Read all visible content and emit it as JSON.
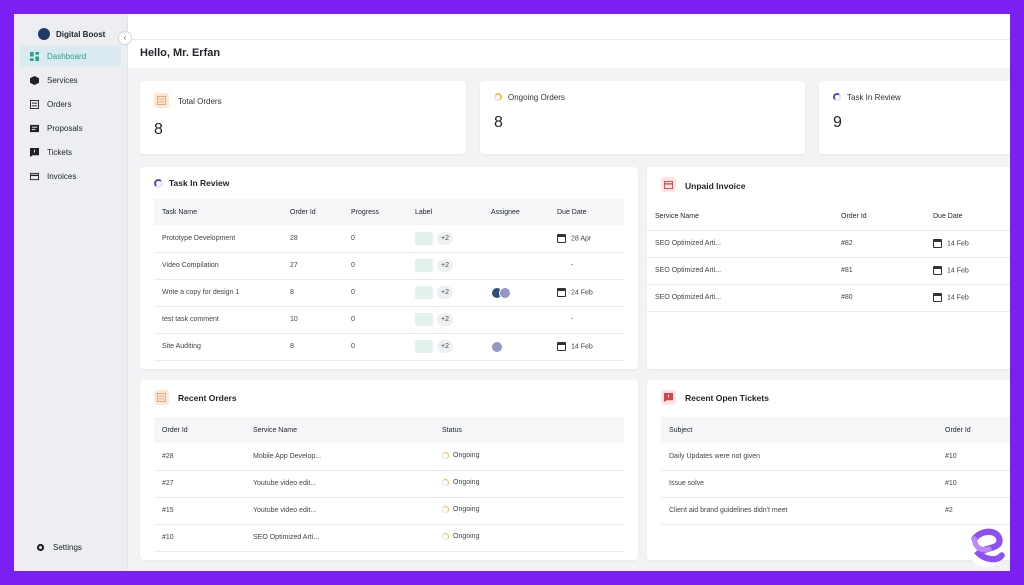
{
  "sidebar": {
    "brand": "Digital Boost",
    "items": [
      {
        "label": "Dashboard",
        "icon": "dashboard-icon",
        "active": true
      },
      {
        "label": "Services",
        "icon": "cube-icon"
      },
      {
        "label": "Orders",
        "icon": "orders-icon"
      },
      {
        "label": "Proposals",
        "icon": "proposals-icon"
      },
      {
        "label": "Tickets",
        "icon": "ticket-icon"
      },
      {
        "label": "Invoices",
        "icon": "invoice-icon"
      }
    ],
    "settings": "Settings"
  },
  "greeting": "Hello, Mr. Erfan",
  "stats": [
    {
      "label": "Total Orders",
      "value": "8"
    },
    {
      "label": "Ongoing Orders",
      "value": "8"
    },
    {
      "label": "Task In Review",
      "value": "9"
    }
  ],
  "task_review": {
    "title": "Task In Review",
    "columns": [
      "Task Name",
      "Order Id",
      "Progress",
      "Label",
      "Assignee",
      "Due Date"
    ],
    "rows": [
      {
        "name": "Prototype Development",
        "order": "28",
        "progress": "0",
        "plus": "+2",
        "due": "28 Apr",
        "avatars": 0
      },
      {
        "name": "Video Compilation",
        "order": "27",
        "progress": "0",
        "plus": "+2",
        "due": "-",
        "avatars": 0
      },
      {
        "name": "Write a copy for design 1",
        "order": "8",
        "progress": "0",
        "plus": "+2",
        "due": "24 Feb",
        "avatars": 2
      },
      {
        "name": "test task comment",
        "order": "10",
        "progress": "0",
        "plus": "+2",
        "due": "-",
        "avatars": 0
      },
      {
        "name": "Site Auditing",
        "order": "8",
        "progress": "0",
        "plus": "+2",
        "due": "14 Feb",
        "avatars": 1
      }
    ]
  },
  "unpaid_invoice": {
    "title": "Unpaid Invoice",
    "columns": [
      "Service Name",
      "Order Id",
      "Due Date"
    ],
    "rows": [
      {
        "service": "SEO Optimized Arti...",
        "order": "#82",
        "due": "14 Feb"
      },
      {
        "service": "SEO Optimized Arti...",
        "order": "#81",
        "due": "14 Feb"
      },
      {
        "service": "SEO Optimized Arti...",
        "order": "#80",
        "due": "14 Feb"
      }
    ]
  },
  "recent_orders": {
    "title": "Recent Orders",
    "columns": [
      "Order Id",
      "Service Name",
      "Status"
    ],
    "rows": [
      {
        "order": "#28",
        "service": "Mobile App Develop...",
        "status": "Ongoing"
      },
      {
        "order": "#27",
        "service": "Youtube video edit...",
        "status": "Ongoing"
      },
      {
        "order": "#15",
        "service": "Youtube video edit...",
        "status": "Ongoing"
      },
      {
        "order": "#10",
        "service": "SEO Optimized Arti...",
        "status": "Ongoing"
      }
    ]
  },
  "recent_tickets": {
    "title": "Recent Open Tickets",
    "columns": [
      "Subject",
      "Order Id"
    ],
    "rows": [
      {
        "subject": "Daily Updates were not given",
        "order": "#10"
      },
      {
        "subject": "Issue solve",
        "order": "#10"
      },
      {
        "subject": "Client aid brand guidelines didn't meet",
        "order": "#2"
      }
    ]
  },
  "colors": {
    "accent": "#22a58b",
    "frame": "#7b1ff2",
    "ongoing": "#f3c235",
    "review": "#5a43d6"
  }
}
